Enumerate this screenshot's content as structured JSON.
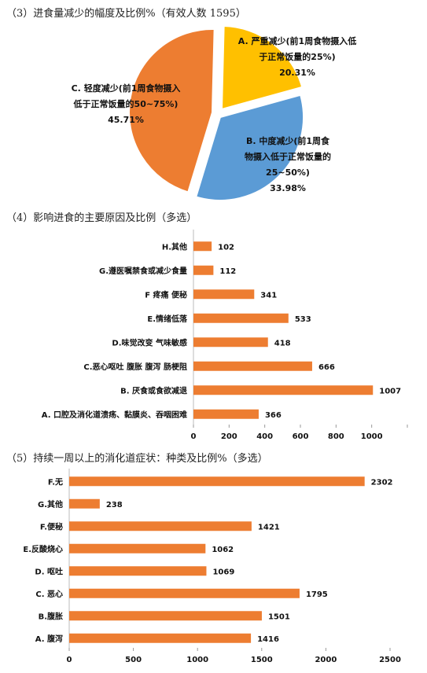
{
  "sections": {
    "pie_title": "（3）进食量减少的幅度及比例%（有效人数 1595）",
    "bar1_title": "（4）影响进食的主要原因及比例（多选）",
    "bar2_title": "（5）持续一周以上的消化道症状：种类及比例%（多选）"
  },
  "colors": {
    "orange": "#ED7D31",
    "yellow": "#FFC000",
    "blue": "#5B9BD5",
    "text": "#111111"
  },
  "chart_data": [
    {
      "type": "pie",
      "slices": [
        {
          "lines": [
            "A. 严重减少(前1周食物摄入低",
            "于正常饭量的25%)",
            "20.31%"
          ],
          "value": 20.31,
          "color": "#FFC000"
        },
        {
          "lines": [
            "B. 中度减少(前1周食",
            "物摄入低于正常饭量的",
            "25~50%)",
            "33.98%"
          ],
          "value": 33.98,
          "color": "#5B9BD5"
        },
        {
          "lines": [
            "C. 轻度减少(前1周食物摄入",
            "低于正常饭量的50~75%)",
            "45.71%"
          ],
          "value": 45.71,
          "color": "#ED7D31"
        }
      ]
    },
    {
      "type": "bar",
      "orientation": "horizontal",
      "categories": [
        "H.其他",
        "G.遵医嘱禁食或减少食量",
        "F 疼痛 便秘",
        "E.情绪低落",
        "D.味觉改变 气味敏感",
        "C.恶心呕吐 腹胀 腹泻 肠梗阻",
        "B. 厌食或食欲减退",
        "A. 口腔及消化道溃疡、黏膜炎、吞咽困难"
      ],
      "values": [
        102,
        112,
        341,
        533,
        418,
        666,
        1007,
        366
      ],
      "xticks": [
        "0",
        "200",
        "400",
        "600",
        "800",
        "1000"
      ],
      "xlim": [
        0,
        1200
      ],
      "color": "#ED7D31"
    },
    {
      "type": "bar",
      "orientation": "horizontal",
      "categories": [
        "F.无",
        "G.其他",
        "F.便秘",
        "E.反酸烧心",
        "D. 呕吐",
        "C. 恶心",
        "B.腹胀",
        "A. 腹泻"
      ],
      "values": [
        2302,
        238,
        1421,
        1062,
        1069,
        1795,
        1501,
        1416
      ],
      "xticks": [
        "0",
        "500",
        "1000",
        "1500",
        "2000",
        "2500"
      ],
      "xlim": [
        0,
        2500
      ],
      "color": "#ED7D31"
    }
  ]
}
